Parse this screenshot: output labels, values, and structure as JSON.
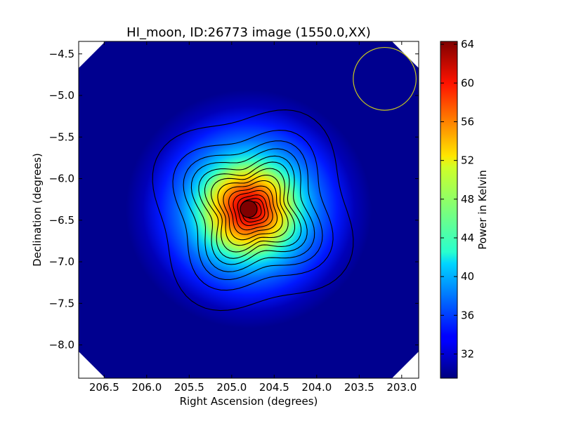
{
  "chart_data": {
    "type": "heatmap",
    "title": "HI_moon, ID:26773 image (1550.0,XX)",
    "xlabel": "Right Ascension (degrees)",
    "ylabel": "Declination (degrees)",
    "colorbar_label": "Power in Kelvin",
    "colormap": "jet",
    "xlim": [
      206.8,
      202.8
    ],
    "ylim": [
      -8.4,
      -4.35
    ],
    "xticks": [
      206.5,
      206.0,
      205.5,
      205.0,
      204.5,
      204.0,
      203.5,
      203.0
    ],
    "xtick_labels": [
      "206.5",
      "206.0",
      "205.5",
      "205.0",
      "204.5",
      "204.0",
      "203.5",
      "203.0"
    ],
    "yticks": [
      -4.5,
      -5.0,
      -5.5,
      -6.0,
      -6.5,
      -7.0,
      -7.5,
      -8.0
    ],
    "ytick_labels": [
      "−4.5",
      "−5.0",
      "−5.5",
      "−6.0",
      "−6.5",
      "−7.0",
      "−7.5",
      "−8.0"
    ],
    "clim": [
      29.5,
      64.3
    ],
    "cbar_ticks": [
      32,
      36,
      40,
      44,
      48,
      52,
      56,
      60,
      64
    ],
    "cbar_tick_labels": [
      "32",
      "36",
      "40",
      "44",
      "48",
      "52",
      "56",
      "60",
      "64"
    ],
    "source_peak": {
      "ra": 204.75,
      "dec": -6.38,
      "value": 64
    },
    "background_level": 30,
    "beam_circle": {
      "ra": 203.2,
      "dec": -4.8,
      "radius_deg": 0.37,
      "color": "#c8c81e"
    },
    "contour_color": "#000000",
    "grid": false
  }
}
